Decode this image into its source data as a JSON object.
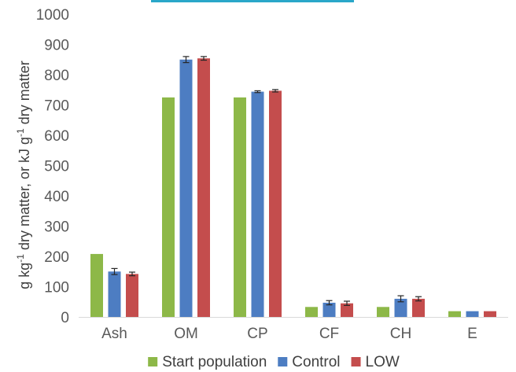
{
  "chart_data": {
    "type": "bar",
    "ylabel_parts": [
      "g kg",
      "-1",
      "  dry  matter, or kJ g",
      "-1",
      " dry matter"
    ],
    "ylim": [
      0,
      1000
    ],
    "yticks": [
      0,
      100,
      200,
      300,
      400,
      500,
      600,
      700,
      800,
      900,
      1000
    ],
    "categories": [
      "Ash",
      "OM",
      "CP",
      "CF",
      "CH",
      "E"
    ],
    "series": [
      {
        "name": "Start population",
        "color": "#8DB848",
        "values": [
          208,
          725,
          725,
          33,
          33,
          19
        ],
        "errors": [
          null,
          null,
          null,
          null,
          null,
          null
        ]
      },
      {
        "name": "Control",
        "color": "#4D7DC2",
        "values": [
          150,
          850,
          744,
          47,
          60,
          19
        ],
        "errors": [
          10,
          10,
          3,
          7,
          10,
          0
        ]
      },
      {
        "name": "LOW",
        "color": "#C44D4D",
        "values": [
          142,
          854,
          747,
          45,
          60,
          19
        ],
        "errors": [
          6,
          6,
          4,
          7,
          7,
          0
        ]
      }
    ],
    "grid": false,
    "legend_position": "bottom",
    "header_bar_color": "#2AA7C9"
  }
}
